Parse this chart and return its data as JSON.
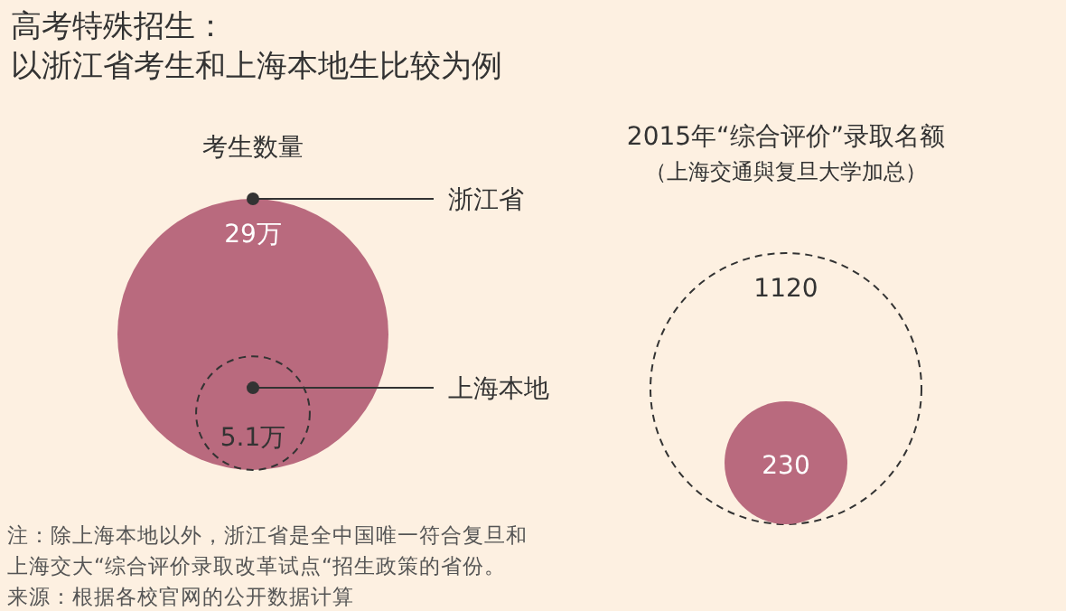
{
  "chart_data": [
    {
      "type": "other",
      "title": "高考特殊招生：",
      "subtitle": "以浙江省考生和上海本地生比较为例",
      "annotations": [
        "注：除上海本地以外，浙江省是全中国唯一符合复旦和",
        "上海交大“综合评价录取改革试点“招生政策的省份。",
        "来源：根据各校官网的公开数据计算"
      ]
    },
    {
      "type": "other",
      "title": "考生数量",
      "categories": [
        "浙江省",
        "上海本地"
      ],
      "values": [
        29,
        5.1
      ],
      "value_labels": [
        "29万",
        "5.1万"
      ],
      "colors": [
        "#b96a7e",
        null
      ]
    },
    {
      "type": "other",
      "title": "2015年“综合评价”录取名额",
      "subtitle": "（上海交通與复旦大学加总）",
      "categories": [
        null,
        null
      ],
      "values": [
        1120,
        230
      ],
      "value_labels": [
        "1120",
        "230"
      ],
      "colors": [
        null,
        "#b96a7e"
      ]
    }
  ]
}
